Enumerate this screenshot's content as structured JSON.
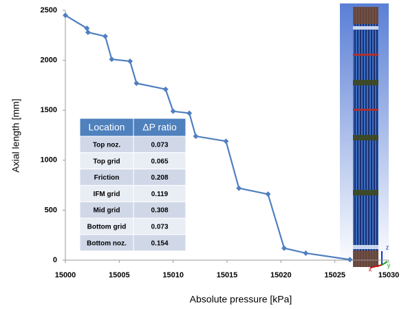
{
  "chart_data": {
    "type": "line",
    "x_label": "Absolute pressure [kPa]",
    "y_label": "Axial length [mm]",
    "x": [
      15000,
      15002,
      15002.1,
      15003.7,
      15004.3,
      15006,
      15006.6,
      15009.3,
      15010,
      15011.5,
      15012.1,
      15014.9,
      15016.1,
      15018.8,
      15020.3,
      15022.3,
      15026.4
    ],
    "values": [
      2450,
      2320,
      2280,
      2240,
      2010,
      1990,
      1770,
      1710,
      1490,
      1470,
      1240,
      1190,
      720,
      660,
      120,
      70,
      5
    ],
    "color": "#4f7fbf",
    "xlim": [
      15000,
      15030
    ],
    "xticks": [
      15000,
      15005,
      15010,
      15015,
      15020,
      15025,
      15030
    ],
    "ylim": [
      0,
      2500
    ],
    "yticks": [
      0,
      500,
      1000,
      1500,
      2000,
      2500
    ],
    "table": {
      "columns": [
        "Location",
        "ΔP ratio"
      ],
      "rows": [
        [
          "Top noz.",
          "0.073"
        ],
        [
          "Top grid",
          "0.065"
        ],
        [
          "Friction",
          "0.208"
        ],
        [
          "IFM grid",
          "0.119"
        ],
        [
          "Mid grid",
          "0.308"
        ],
        [
          "Bottom grid",
          "0.073"
        ],
        [
          "Bottom noz.",
          "0.154"
        ]
      ]
    },
    "triad_labels": [
      "z",
      "x",
      "y"
    ]
  }
}
